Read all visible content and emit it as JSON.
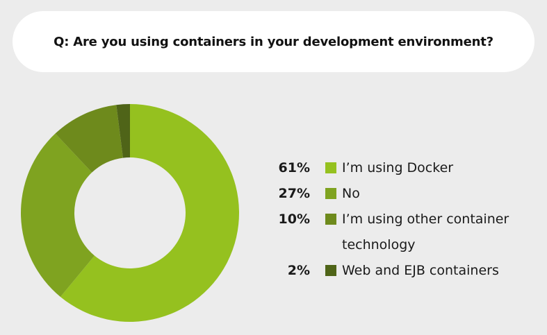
{
  "question": "Q: Are you using containers in your development environment?",
  "chart_data": {
    "type": "pie",
    "donut": true,
    "title": "Q: Are you using containers in your development environment?",
    "categories": [
      "I’m using Docker",
      "No",
      "I’m using other container technology",
      "Web and EJB containers"
    ],
    "values": [
      61,
      27,
      10,
      2
    ],
    "value_labels": [
      "61%",
      "27%",
      "10%",
      "2%"
    ],
    "colors": [
      "#95c11f",
      "#7fa320",
      "#6e8a1c",
      "#4f6418"
    ],
    "legend_placement": "right"
  }
}
